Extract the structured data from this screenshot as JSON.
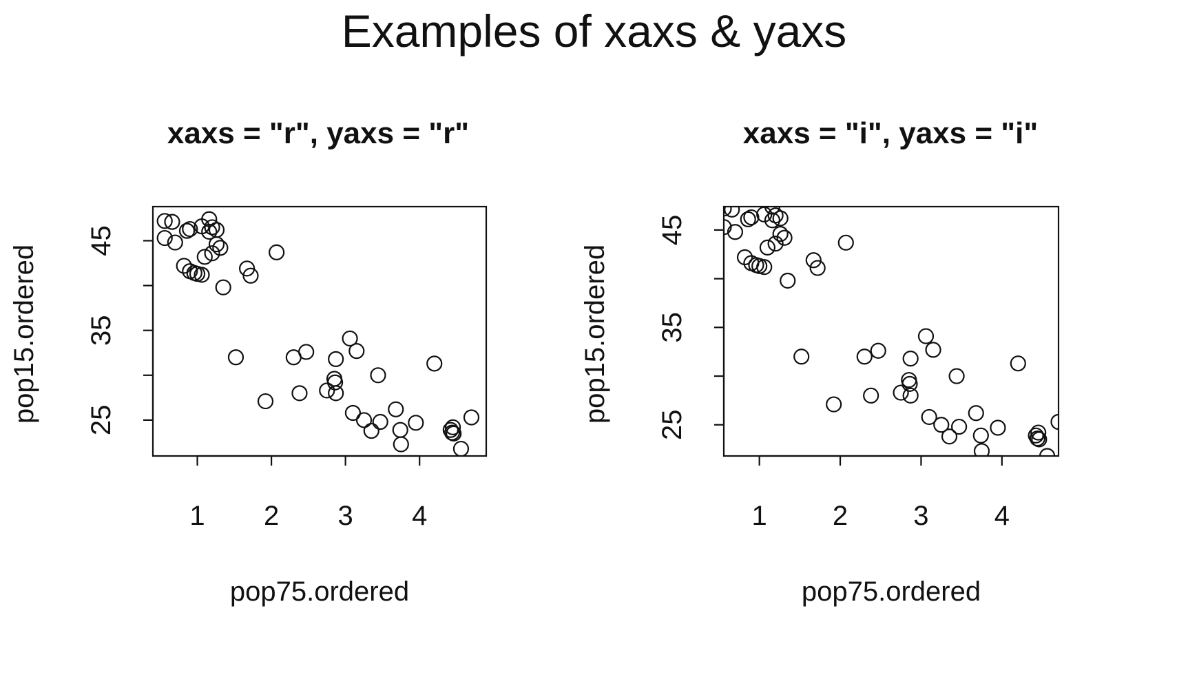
{
  "title": "Examples of xaxs & yaxs",
  "chart_data": [
    {
      "type": "scatter",
      "title": "xaxs = \"r\", yaxs = \"r\"",
      "xlabel": "pop75.ordered",
      "ylabel": "pop15.ordered",
      "xlim": [
        0.4,
        4.9
      ],
      "ylim": [
        21.0,
        48.8
      ],
      "xticks": [
        1,
        2,
        3,
        4
      ],
      "yticks": [
        25,
        30,
        35,
        40,
        45
      ],
      "ytick_labels": [
        "25",
        "",
        "35",
        "",
        "45"
      ],
      "grid": false,
      "marker": "open-circle",
      "points": [
        [
          0.56,
          47.2
        ],
        [
          0.66,
          47.1
        ],
        [
          0.56,
          45.3
        ],
        [
          0.7,
          44.8
        ],
        [
          0.86,
          46.1
        ],
        [
          0.9,
          46.3
        ],
        [
          1.06,
          46.6
        ],
        [
          1.16,
          47.4
        ],
        [
          1.16,
          46.0
        ],
        [
          1.2,
          46.5
        ],
        [
          1.26,
          46.2
        ],
        [
          1.1,
          43.2
        ],
        [
          1.2,
          43.6
        ],
        [
          1.26,
          44.6
        ],
        [
          1.31,
          44.2
        ],
        [
          0.82,
          42.2
        ],
        [
          0.9,
          41.6
        ],
        [
          0.96,
          41.4
        ],
        [
          1.0,
          41.3
        ],
        [
          1.06,
          41.2
        ],
        [
          1.35,
          39.8
        ],
        [
          1.67,
          41.9
        ],
        [
          1.72,
          41.1
        ],
        [
          2.07,
          43.7
        ],
        [
          1.52,
          32.0
        ],
        [
          1.92,
          27.1
        ],
        [
          2.3,
          32.0
        ],
        [
          2.38,
          28.0
        ],
        [
          2.47,
          32.6
        ],
        [
          2.75,
          28.3
        ],
        [
          2.85,
          29.6
        ],
        [
          2.86,
          29.2
        ],
        [
          2.87,
          28.0
        ],
        [
          2.87,
          31.8
        ],
        [
          3.06,
          34.1
        ],
        [
          3.15,
          32.7
        ],
        [
          3.1,
          25.8
        ],
        [
          3.25,
          25.0
        ],
        [
          3.35,
          23.8
        ],
        [
          3.44,
          30.0
        ],
        [
          3.47,
          24.8
        ],
        [
          3.68,
          26.2
        ],
        [
          3.74,
          23.9
        ],
        [
          3.75,
          22.3
        ],
        [
          3.95,
          24.7
        ],
        [
          4.2,
          31.3
        ],
        [
          4.42,
          23.9
        ],
        [
          4.44,
          23.6
        ],
        [
          4.45,
          24.2
        ],
        [
          4.46,
          23.5
        ],
        [
          4.56,
          21.8
        ],
        [
          4.7,
          25.3
        ]
      ]
    },
    {
      "type": "scatter",
      "title": "xaxs = \"i\", yaxs = \"i\"",
      "xlabel": "pop75.ordered",
      "ylabel": "pop15.ordered",
      "xlim": [
        0.56,
        4.7
      ],
      "ylim": [
        21.8,
        47.4
      ],
      "xticks": [
        1,
        2,
        3,
        4
      ],
      "yticks": [
        25,
        30,
        35,
        40,
        45
      ],
      "ytick_labels": [
        "25",
        "",
        "35",
        "",
        "45"
      ],
      "grid": false,
      "marker": "open-circle",
      "points": [
        [
          0.56,
          47.2
        ],
        [
          0.66,
          47.1
        ],
        [
          0.56,
          45.3
        ],
        [
          0.7,
          44.8
        ],
        [
          0.86,
          46.1
        ],
        [
          0.9,
          46.3
        ],
        [
          1.06,
          46.6
        ],
        [
          1.16,
          47.4
        ],
        [
          1.16,
          46.0
        ],
        [
          1.2,
          46.5
        ],
        [
          1.26,
          46.2
        ],
        [
          1.1,
          43.2
        ],
        [
          1.2,
          43.6
        ],
        [
          1.26,
          44.6
        ],
        [
          1.31,
          44.2
        ],
        [
          0.82,
          42.2
        ],
        [
          0.9,
          41.6
        ],
        [
          0.96,
          41.4
        ],
        [
          1.0,
          41.3
        ],
        [
          1.06,
          41.2
        ],
        [
          1.35,
          39.8
        ],
        [
          1.67,
          41.9
        ],
        [
          1.72,
          41.1
        ],
        [
          2.07,
          43.7
        ],
        [
          1.52,
          32.0
        ],
        [
          1.92,
          27.1
        ],
        [
          2.3,
          32.0
        ],
        [
          2.38,
          28.0
        ],
        [
          2.47,
          32.6
        ],
        [
          2.75,
          28.3
        ],
        [
          2.85,
          29.6
        ],
        [
          2.86,
          29.2
        ],
        [
          2.87,
          28.0
        ],
        [
          2.87,
          31.8
        ],
        [
          3.06,
          34.1
        ],
        [
          3.15,
          32.7
        ],
        [
          3.1,
          25.8
        ],
        [
          3.25,
          25.0
        ],
        [
          3.35,
          23.8
        ],
        [
          3.44,
          30.0
        ],
        [
          3.47,
          24.8
        ],
        [
          3.68,
          26.2
        ],
        [
          3.74,
          23.9
        ],
        [
          3.75,
          22.3
        ],
        [
          3.95,
          24.7
        ],
        [
          4.2,
          31.3
        ],
        [
          4.42,
          23.9
        ],
        [
          4.44,
          23.6
        ],
        [
          4.45,
          24.2
        ],
        [
          4.46,
          23.5
        ],
        [
          4.56,
          21.8
        ],
        [
          4.7,
          25.3
        ]
      ]
    }
  ]
}
